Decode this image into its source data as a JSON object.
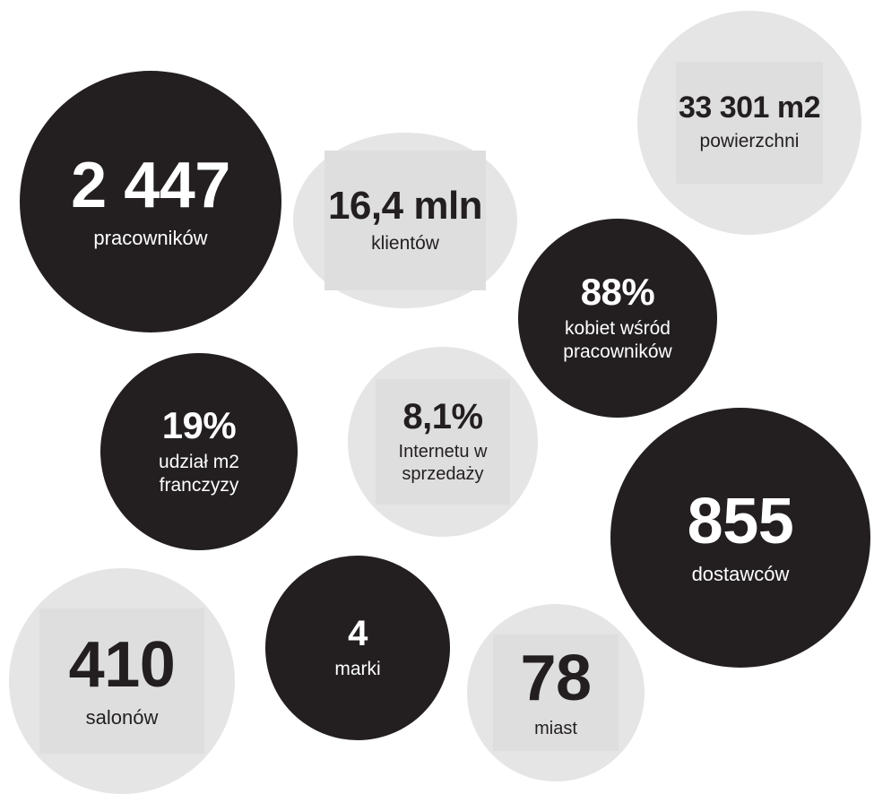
{
  "bubbles": {
    "employees": {
      "value": "2 447",
      "label": "pracowników",
      "theme": "dark"
    },
    "clients": {
      "value": "16,4 mln",
      "label": "klientów",
      "theme": "light"
    },
    "area": {
      "value": "33 301 m2",
      "label": "powierzchni",
      "theme": "light"
    },
    "women": {
      "value": "88%",
      "label_line1": "kobiet wśród",
      "label_line2": "pracowników",
      "theme": "dark"
    },
    "franchise": {
      "value": "19%",
      "label_line1": "udział m2",
      "label_line2": "franczyzy",
      "theme": "dark"
    },
    "internet": {
      "value": "8,1%",
      "label_line1": "Internetu w",
      "label_line2": "sprzedaży",
      "theme": "light"
    },
    "suppliers": {
      "value": "855",
      "label": "dostawców",
      "theme": "dark"
    },
    "salons": {
      "value": "410",
      "label": "salonów",
      "theme": "light"
    },
    "brands": {
      "value": "4",
      "label": "marki",
      "theme": "dark"
    },
    "cities": {
      "value": "78",
      "label": "miast",
      "theme": "light"
    }
  },
  "colors": {
    "dark_bubble": "#231f20",
    "light_bubble": "#e5e5e5",
    "light_inner": "#dedede",
    "text_on_dark": "#ffffff",
    "text_on_light": "#231f20"
  }
}
